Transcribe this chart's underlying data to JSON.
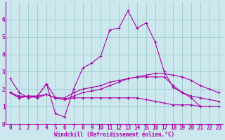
{
  "xlabel": "Windchill (Refroidissement éolien,°C)",
  "background_color": "#cce8ee",
  "line_color": "#aa00aa",
  "grid_color": "#99cccc",
  "xlim": [
    -0.5,
    23.5
  ],
  "ylim": [
    0,
    7
  ],
  "xtick_labels": [
    "0",
    "1",
    "2",
    "3",
    "4",
    "5",
    "6",
    "7",
    "8",
    "9",
    "10",
    "11",
    "12",
    "13",
    "14",
    "15",
    "16",
    "17",
    "18",
    "19",
    "20",
    "21",
    "22",
    "23"
  ],
  "xtick_vals": [
    0,
    1,
    2,
    3,
    4,
    5,
    6,
    7,
    8,
    9,
    10,
    11,
    12,
    13,
    14,
    15,
    16,
    17,
    18,
    19,
    20,
    21,
    22,
    23
  ],
  "yticks": [
    0,
    1,
    2,
    3,
    4,
    5,
    6
  ],
  "series": [
    {
      "x": [
        0,
        1,
        2,
        3,
        4,
        5,
        6,
        7,
        8,
        9,
        10,
        11,
        12,
        13,
        14,
        15,
        16,
        17,
        18,
        19,
        20,
        21,
        22
      ],
      "y": [
        2.6,
        1.8,
        1.5,
        1.6,
        2.3,
        0.6,
        0.4,
        2.0,
        3.2,
        3.5,
        3.9,
        5.4,
        5.5,
        6.5,
        5.5,
        5.8,
        4.7,
        3.0,
        2.1,
        1.8,
        1.5,
        1.0,
        null
      ]
    },
    {
      "x": [
        0,
        1,
        2,
        3,
        4,
        5,
        6,
        7,
        8,
        9,
        10,
        11,
        12,
        13,
        14,
        15,
        16,
        17,
        18,
        19,
        20,
        21,
        22,
        23
      ],
      "y": [
        1.8,
        1.5,
        1.6,
        1.5,
        1.7,
        1.5,
        1.4,
        1.6,
        1.8,
        1.9,
        2.0,
        2.2,
        2.4,
        2.6,
        2.7,
        2.8,
        2.9,
        2.9,
        2.8,
        2.7,
        2.5,
        2.2,
        2.0,
        1.8
      ]
    },
    {
      "x": [
        0,
        1,
        2,
        3,
        4,
        5,
        6,
        7,
        8,
        9,
        10,
        11,
        12,
        13,
        14,
        15,
        16,
        17,
        18,
        19,
        20,
        21,
        22,
        23
      ],
      "y": [
        1.8,
        1.5,
        1.6,
        1.6,
        1.7,
        1.5,
        1.4,
        1.5,
        1.5,
        1.5,
        1.5,
        1.5,
        1.5,
        1.5,
        1.5,
        1.4,
        1.3,
        1.2,
        1.1,
        1.1,
        1.1,
        1.0,
        1.0,
        1.0
      ]
    },
    {
      "x": [
        0,
        1,
        2,
        3,
        4,
        5,
        6,
        7,
        8,
        9,
        10,
        11,
        12,
        13,
        14,
        15,
        16,
        17,
        18,
        19,
        20,
        21,
        22,
        23
      ],
      "y": [
        1.8,
        1.6,
        1.6,
        1.6,
        2.3,
        1.5,
        1.5,
        1.8,
        2.0,
        2.1,
        2.2,
        2.4,
        2.5,
        2.6,
        2.7,
        2.7,
        2.7,
        2.7,
        2.2,
        1.8,
        1.6,
        1.5,
        1.4,
        1.3
      ]
    }
  ],
  "xlabel_fontsize": 5.5,
  "tick_fontsize": 5.5
}
